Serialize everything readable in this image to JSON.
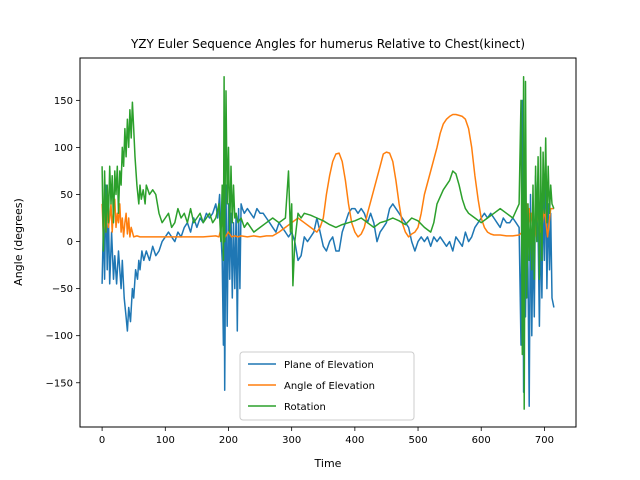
{
  "chart_data": {
    "type": "line",
    "title": "YZY Euler Sequence Angles for humerus Relative to Chest(kinect)",
    "xlabel": "Time",
    "ylabel": "Angle (degrees)",
    "xlim": [
      -35,
      750
    ],
    "ylim": [
      -197,
      195
    ],
    "xticks": [
      0,
      100,
      200,
      300,
      400,
      500,
      600,
      700
    ],
    "yticks": [
      -150,
      -100,
      -50,
      0,
      50,
      100,
      150
    ],
    "ytick_labels": [
      "−150",
      "−100",
      "−50",
      "0",
      "50",
      "100",
      "150"
    ],
    "grid": false,
    "legend_position": "lower center",
    "series": [
      {
        "name": "Plane of Elevation",
        "color": "#1f77b4",
        "x": [
          0,
          2,
          4,
          6,
          8,
          10,
          12,
          15,
          18,
          20,
          23,
          26,
          28,
          30,
          32,
          35,
          38,
          40,
          42,
          45,
          48,
          50,
          53,
          56,
          58,
          60,
          63,
          66,
          70,
          75,
          80,
          85,
          90,
          95,
          100,
          105,
          110,
          115,
          120,
          125,
          130,
          135,
          140,
          145,
          150,
          155,
          160,
          165,
          170,
          175,
          180,
          183,
          186,
          188,
          190,
          192,
          193,
          194,
          196,
          198,
          200,
          202,
          204,
          206,
          208,
          210,
          212,
          214,
          216,
          218,
          220,
          222,
          225,
          230,
          235,
          240,
          245,
          250,
          255,
          260,
          265,
          270,
          275,
          280,
          285,
          290,
          295,
          300,
          305,
          310,
          315,
          320,
          325,
          330,
          335,
          340,
          345,
          350,
          355,
          360,
          365,
          370,
          375,
          380,
          385,
          390,
          395,
          400,
          405,
          410,
          415,
          420,
          425,
          430,
          435,
          440,
          445,
          450,
          455,
          460,
          465,
          470,
          475,
          480,
          485,
          490,
          495,
          500,
          505,
          510,
          515,
          520,
          525,
          530,
          535,
          540,
          545,
          550,
          555,
          560,
          565,
          570,
          575,
          580,
          585,
          590,
          595,
          600,
          605,
          610,
          615,
          620,
          625,
          630,
          635,
          640,
          645,
          650,
          655,
          660,
          663,
          665,
          667,
          668,
          670,
          672,
          674,
          676,
          678,
          680,
          682,
          684,
          686,
          688,
          690,
          692,
          694,
          696,
          698,
          700,
          702,
          704,
          706,
          708,
          710,
          712,
          715
        ],
        "y": [
          -45,
          20,
          -40,
          60,
          -30,
          30,
          -45,
          10,
          -40,
          -15,
          -45,
          -10,
          -30,
          -50,
          -20,
          -60,
          -80,
          -95,
          -70,
          -85,
          -50,
          -60,
          -30,
          -40,
          -20,
          -30,
          -10,
          -20,
          -10,
          -20,
          -5,
          -15,
          -10,
          0,
          5,
          10,
          5,
          0,
          10,
          5,
          15,
          20,
          10,
          25,
          15,
          25,
          20,
          30,
          25,
          30,
          40,
          25,
          50,
          10,
          -20,
          -110,
          10,
          -158,
          60,
          -90,
          40,
          -40,
          30,
          -60,
          20,
          -50,
          30,
          -95,
          35,
          -50,
          40,
          35,
          30,
          35,
          30,
          25,
          35,
          30,
          30,
          25,
          20,
          15,
          10,
          20,
          15,
          10,
          5,
          10,
          0,
          -20,
          -15,
          5,
          0,
          5,
          10,
          25,
          10,
          -5,
          -10,
          0,
          5,
          -10,
          -10,
          10,
          20,
          30,
          35,
          35,
          30,
          35,
          30,
          20,
          30,
          20,
          0,
          10,
          15,
          20,
          35,
          40,
          35,
          30,
          25,
          20,
          15,
          0,
          -10,
          0,
          5,
          0,
          5,
          -5,
          5,
          0,
          5,
          0,
          -5,
          0,
          -10,
          5,
          0,
          -5,
          10,
          0,
          5,
          15,
          20,
          25,
          30,
          25,
          30,
          25,
          20,
          15,
          25,
          20,
          20,
          25,
          20,
          15,
          -110,
          150,
          -160,
          20,
          -80,
          40,
          -30,
          -175,
          50,
          -100,
          10,
          -80,
          70,
          30,
          10,
          -90,
          20,
          -60,
          50,
          -20,
          70,
          -50,
          40,
          -30,
          30,
          -60,
          -70
        ]
      },
      {
        "name": "Angle of Elevation",
        "color": "#ff7f0e",
        "x": [
          0,
          2,
          4,
          6,
          8,
          10,
          12,
          14,
          16,
          18,
          20,
          22,
          24,
          26,
          28,
          30,
          32,
          34,
          36,
          38,
          40,
          42,
          44,
          46,
          48,
          50,
          55,
          60,
          70,
          80,
          100,
          120,
          140,
          160,
          180,
          185,
          190,
          195,
          200,
          205,
          210,
          215,
          220,
          230,
          240,
          250,
          260,
          270,
          280,
          290,
          300,
          310,
          320,
          330,
          340,
          345,
          350,
          355,
          360,
          365,
          370,
          375,
          380,
          385,
          390,
          395,
          400,
          405,
          410,
          415,
          420,
          430,
          440,
          445,
          450,
          455,
          460,
          465,
          470,
          475,
          480,
          485,
          490,
          495,
          500,
          505,
          510,
          520,
          530,
          535,
          540,
          545,
          550,
          555,
          560,
          565,
          570,
          575,
          580,
          585,
          590,
          595,
          600,
          605,
          610,
          615,
          620,
          630,
          640,
          650,
          660,
          665,
          668,
          670,
          672,
          674,
          676,
          678,
          680,
          685,
          690,
          695,
          700,
          705,
          710,
          715
        ],
        "y": [
          40,
          5,
          30,
          10,
          40,
          15,
          25,
          40,
          10,
          35,
          45,
          15,
          30,
          20,
          40,
          10,
          25,
          5,
          20,
          30,
          8,
          25,
          5,
          15,
          10,
          5,
          6,
          5,
          5,
          5,
          5,
          5,
          5,
          5,
          6,
          5,
          20,
          5,
          10,
          5,
          6,
          5,
          6,
          5,
          6,
          5,
          6,
          6,
          10,
          15,
          20,
          25,
          20,
          15,
          10,
          15,
          25,
          50,
          70,
          85,
          93,
          94,
          85,
          65,
          40,
          20,
          10,
          5,
          8,
          15,
          30,
          55,
          80,
          93,
          95,
          94,
          85,
          65,
          40,
          20,
          10,
          5,
          8,
          10,
          15,
          30,
          50,
          75,
          100,
          115,
          125,
          130,
          133,
          135,
          135,
          134,
          133,
          130,
          120,
          100,
          70,
          45,
          25,
          15,
          10,
          8,
          7,
          7,
          6,
          6,
          7,
          10,
          50,
          5,
          40,
          10,
          35,
          15,
          30,
          5,
          30,
          10,
          35,
          5,
          35,
          35
        ]
      },
      {
        "name": "Rotation",
        "color": "#2ca02c",
        "x": [
          0,
          2,
          4,
          6,
          8,
          10,
          12,
          14,
          16,
          18,
          20,
          22,
          24,
          26,
          28,
          30,
          32,
          34,
          36,
          38,
          40,
          42,
          44,
          46,
          48,
          50,
          52,
          55,
          58,
          60,
          62,
          65,
          68,
          70,
          75,
          80,
          85,
          90,
          95,
          100,
          105,
          110,
          115,
          120,
          125,
          130,
          135,
          140,
          145,
          150,
          155,
          160,
          165,
          170,
          175,
          180,
          185,
          188,
          190,
          192,
          193,
          194,
          196,
          198,
          200,
          202,
          204,
          206,
          208,
          210,
          212,
          215,
          220,
          225,
          230,
          240,
          250,
          260,
          270,
          280,
          290,
          295,
          298,
          300,
          302,
          305,
          310,
          315,
          320,
          330,
          340,
          350,
          360,
          370,
          380,
          390,
          400,
          410,
          420,
          430,
          440,
          450,
          460,
          470,
          480,
          490,
          500,
          510,
          520,
          525,
          530,
          540,
          550,
          555,
          560,
          565,
          570,
          575,
          580,
          590,
          600,
          610,
          620,
          630,
          640,
          650,
          660,
          663,
          665,
          667,
          668,
          670,
          672,
          674,
          676,
          678,
          680,
          682,
          684,
          686,
          688,
          690,
          692,
          694,
          696,
          698,
          700,
          702,
          704,
          706,
          708,
          710,
          712,
          715
        ],
        "y": [
          80,
          -10,
          75,
          10,
          60,
          20,
          80,
          40,
          70,
          20,
          75,
          50,
          80,
          30,
          75,
          60,
          100,
          80,
          120,
          90,
          130,
          100,
          140,
          110,
          148,
          120,
          90,
          60,
          40,
          60,
          45,
          55,
          40,
          60,
          50,
          55,
          50,
          30,
          20,
          25,
          30,
          15,
          20,
          35,
          25,
          30,
          20,
          35,
          20,
          25,
          30,
          20,
          25,
          30,
          20,
          25,
          40,
          0,
          60,
          -20,
          175,
          0,
          160,
          40,
          100,
          10,
          80,
          20,
          60,
          25,
          30,
          20,
          25,
          15,
          20,
          10,
          15,
          20,
          25,
          20,
          25,
          75,
          10,
          40,
          -47,
          0,
          30,
          25,
          30,
          28,
          25,
          22,
          18,
          15,
          18,
          20,
          22,
          25,
          20,
          15,
          20,
          22,
          25,
          22,
          18,
          25,
          22,
          15,
          10,
          20,
          40,
          55,
          65,
          75,
          72,
          60,
          45,
          35,
          30,
          25,
          20,
          25,
          30,
          35,
          30,
          25,
          40,
          150,
          -120,
          175,
          -178,
          170,
          -60,
          40,
          -20,
          30,
          -30,
          60,
          -40,
          80,
          0,
          90,
          -40,
          100,
          -20,
          95,
          30,
          110,
          20,
          80,
          30,
          60,
          40,
          35
        ]
      }
    ]
  }
}
